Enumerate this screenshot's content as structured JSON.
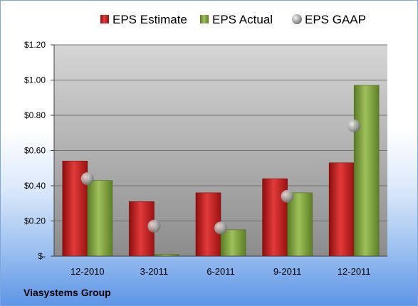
{
  "chart_data": {
    "type": "bar",
    "categories": [
      "12-2010",
      "3-2011",
      "6-2011",
      "9-2011",
      "12-2011"
    ],
    "series": [
      {
        "name": "EPS Estimate",
        "type": "bar",
        "color": "#d42a2a",
        "values": [
          0.54,
          0.31,
          0.36,
          0.44,
          0.53
        ]
      },
      {
        "name": "EPS Actual",
        "type": "bar",
        "color": "#8fb04a",
        "values": [
          0.43,
          0.01,
          0.15,
          0.36,
          0.97
        ]
      },
      {
        "name": "EPS GAAP",
        "type": "scatter",
        "color": "#9a9a9a",
        "values": [
          0.44,
          0.17,
          0.16,
          0.34,
          0.74
        ]
      }
    ],
    "yticks": [
      "$-",
      "$0.20",
      "$0.40",
      "$0.60",
      "$0.80",
      "$1.00",
      "$1.20"
    ],
    "ylim": [
      0,
      1.2
    ],
    "grid": true,
    "legend": "top"
  },
  "footer": {
    "company": "Viasystems Group"
  }
}
